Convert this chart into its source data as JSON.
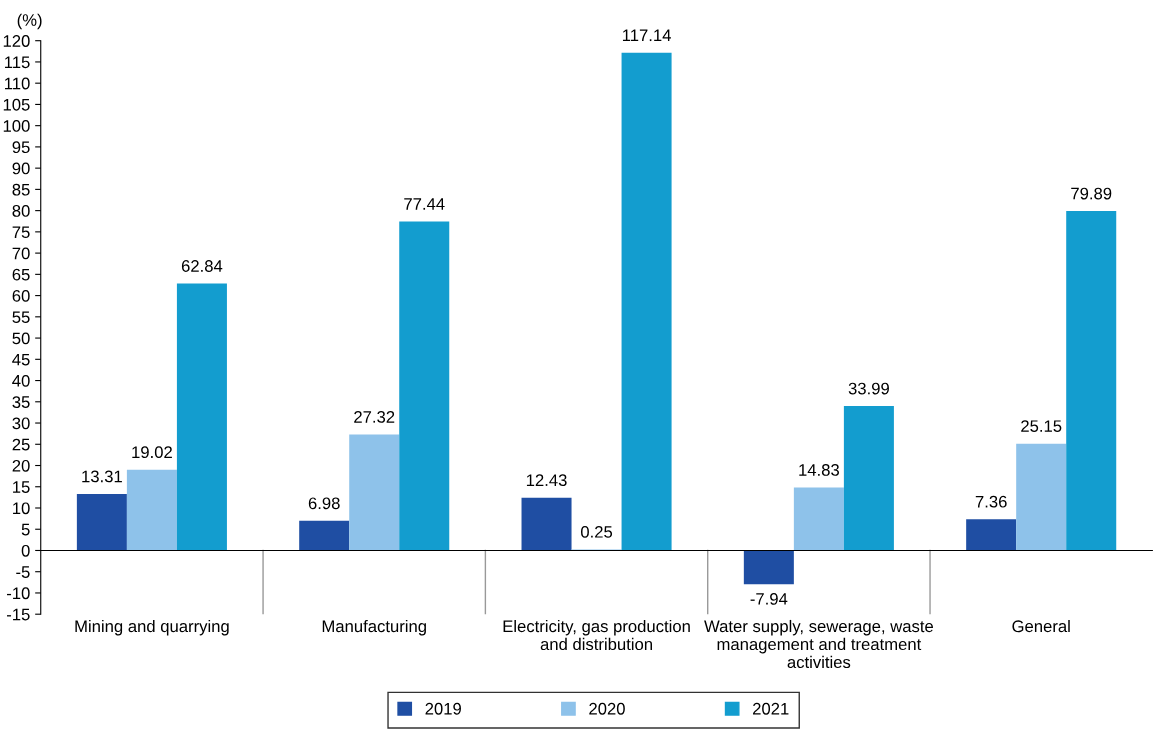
{
  "chart_data": {
    "type": "bar",
    "ylabel": "(%)",
    "categories": [
      "Mining and quarrying",
      "Manufacturing",
      "Electricity, gas production\nand distribution",
      "Water supply, sewerage, waste\nmanagement and treatment\nactivities",
      "General"
    ],
    "series": [
      {
        "name": "2019",
        "color": "#1f4ea3",
        "values": [
          13.31,
          6.98,
          12.43,
          -7.94,
          7.36
        ]
      },
      {
        "name": "2020",
        "color": "#8ec2ea",
        "values": [
          19.02,
          27.32,
          0.25,
          14.83,
          25.15
        ]
      },
      {
        "name": "2021",
        "color": "#139dcf",
        "values": [
          62.84,
          77.44,
          117.14,
          33.99,
          79.89
        ]
      }
    ],
    "ylim": [
      -15,
      120
    ],
    "yticks": [
      -15,
      -10,
      -5,
      0,
      5,
      10,
      15,
      20,
      25,
      30,
      35,
      40,
      45,
      50,
      55,
      60,
      65,
      70,
      75,
      80,
      85,
      90,
      95,
      100,
      105,
      110,
      115,
      120
    ],
    "data_labels": true,
    "legend": "bottom"
  }
}
